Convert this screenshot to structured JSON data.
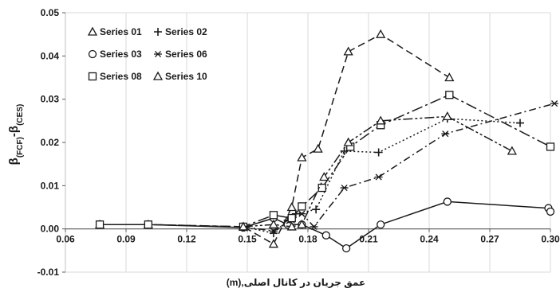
{
  "chart_data": {
    "type": "line",
    "xlabel": "عمق جریان در کانال اصلی,(m)",
    "ylabel": {
      "beta1": "β",
      "sub1": "(FCF)",
      "dash": "-",
      "beta2": "β",
      "sub2": "(CES)"
    },
    "xlim": [
      0.06,
      0.3
    ],
    "ylim": [
      -0.01,
      0.05
    ],
    "xticks": [
      "0.06",
      "0.09",
      "0.12",
      "0.15",
      "0.18",
      "0.21",
      "0.24",
      "0.27",
      "0.30"
    ],
    "yticks": [
      "-0.01",
      "0.00",
      "0.01",
      "0.02",
      "0.03",
      "0.04",
      "0.05"
    ],
    "grid": "vertical",
    "legend": {
      "placement": "top-left",
      "columns": 2
    },
    "series": [
      {
        "name": "Series 01",
        "marker": "triangle",
        "dash": "9,5",
        "x": [
          0.077,
          0.101,
          0.148,
          0.163,
          0.172,
          0.177,
          0.185,
          0.2,
          0.216,
          0.25
        ],
        "y": [
          0.001,
          0.001,
          0.0005,
          -0.0035,
          0.005,
          0.0165,
          0.0185,
          0.041,
          0.045,
          0.035
        ]
      },
      {
        "name": "Series 02",
        "marker": "plus",
        "dash": "2,3",
        "x": [
          0.148,
          0.163,
          0.17,
          0.174,
          0.184,
          0.198,
          0.215,
          0.249,
          0.285
        ],
        "y": [
          0.0005,
          -0.001,
          0.002,
          0.0035,
          0.0045,
          0.018,
          0.0177,
          0.0255,
          0.0245
        ]
      },
      {
        "name": "Series 03",
        "marker": "circle",
        "dash": "",
        "x": [
          0.077,
          0.101,
          0.148,
          0.163,
          0.17,
          0.177,
          0.189,
          0.199,
          0.216,
          0.249,
          0.299,
          0.3
        ],
        "y": [
          0.001,
          0.001,
          0.0003,
          0.0025,
          0.001,
          0.001,
          -0.0015,
          -0.0045,
          0.001,
          0.0063,
          0.0048,
          0.004
        ]
      },
      {
        "name": "Series 06",
        "marker": "asterisk",
        "dash": "9,4,2,4",
        "x": [
          0.148,
          0.163,
          0.172,
          0.177,
          0.183,
          0.198,
          0.215,
          0.248,
          0.302
        ],
        "y": [
          0.0005,
          -0.0005,
          0.002,
          0.0035,
          0.0005,
          0.0095,
          0.012,
          0.022,
          0.029
        ]
      },
      {
        "name": "Series 08",
        "marker": "square",
        "dash": "14,4,3,4",
        "x": [
          0.077,
          0.101,
          0.148,
          0.163,
          0.172,
          0.177,
          0.187,
          0.201,
          0.216,
          0.25,
          0.3
        ],
        "y": [
          0.001,
          0.001,
          0.0005,
          0.0032,
          0.0025,
          0.0052,
          0.0095,
          0.019,
          0.024,
          0.031,
          0.019
        ]
      },
      {
        "name": "Series 10",
        "marker": "triangle",
        "dash": "12,3,3,3,3,3",
        "x": [
          0.148,
          0.163,
          0.172,
          0.177,
          0.188,
          0.2,
          0.216,
          0.249,
          0.281
        ],
        "y": [
          0.0005,
          0.001,
          0.0005,
          0.001,
          0.012,
          0.02,
          0.025,
          0.026,
          0.018
        ]
      }
    ]
  }
}
